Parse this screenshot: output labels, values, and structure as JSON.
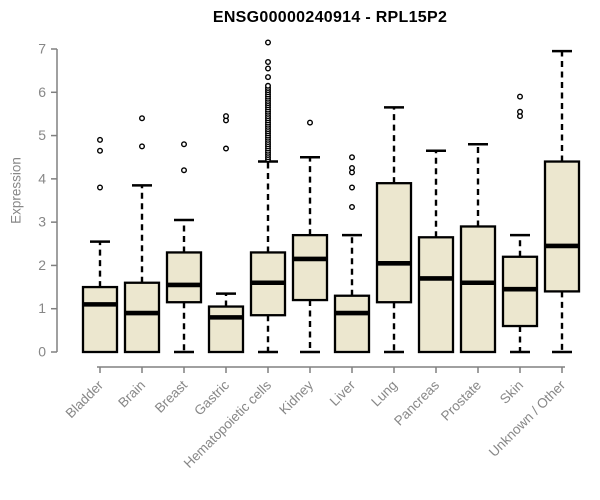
{
  "chart_data": {
    "type": "boxplot",
    "title": "ENSG00000240914 - RPL15P2",
    "ylabel": "Expression",
    "xlabel": "",
    "ylim": [
      0,
      7
    ],
    "yticks": [
      0,
      1,
      2,
      3,
      4,
      5,
      6,
      7
    ],
    "grid": false,
    "legend": "none",
    "categories": [
      "Bladder",
      "Brain",
      "Breast",
      "Gastric",
      "Hematopoietic cells",
      "Kidney",
      "Liver",
      "Lung",
      "Pancreas",
      "Prostate",
      "Skin",
      "Unknown / Other"
    ],
    "series": [
      {
        "label": "Bladder",
        "whisker_low": 0,
        "q1": 0,
        "median": 1.1,
        "q3": 1.5,
        "whisker_high": 2.55,
        "outliers": [
          3.8,
          4.65,
          4.9
        ]
      },
      {
        "label": "Brain",
        "whisker_low": 0,
        "q1": 0,
        "median": 0.9,
        "q3": 1.6,
        "whisker_high": 3.85,
        "outliers": [
          4.75,
          5.4
        ]
      },
      {
        "label": "Breast",
        "whisker_low": 0,
        "q1": 1.15,
        "median": 1.55,
        "q3": 2.3,
        "whisker_high": 3.05,
        "outliers": [
          4.2,
          4.8
        ]
      },
      {
        "label": "Gastric",
        "whisker_low": 0,
        "q1": 0,
        "median": 0.8,
        "q3": 1.05,
        "whisker_high": 1.35,
        "outliers": [
          4.7,
          5.35,
          5.45
        ]
      },
      {
        "label": "Hematopoietic cells",
        "whisker_low": 0,
        "q1": 0.85,
        "median": 1.6,
        "q3": 2.3,
        "whisker_high": 4.4,
        "outliers": [
          4.45,
          4.5,
          4.55,
          4.6,
          4.65,
          4.7,
          4.75,
          4.8,
          4.85,
          4.9,
          4.95,
          5.0,
          5.05,
          5.1,
          5.15,
          5.2,
          5.25,
          5.3,
          5.35,
          5.4,
          5.45,
          5.5,
          5.55,
          5.6,
          5.65,
          5.7,
          5.75,
          5.8,
          5.85,
          5.9,
          5.95,
          6.0,
          6.05,
          6.1,
          6.15,
          6.35,
          6.55,
          6.7,
          7.15
        ]
      },
      {
        "label": "Kidney",
        "whisker_low": 0,
        "q1": 1.2,
        "median": 2.15,
        "q3": 2.7,
        "whisker_high": 4.5,
        "outliers": [
          5.3
        ]
      },
      {
        "label": "Liver",
        "whisker_low": 0,
        "q1": 0,
        "median": 0.9,
        "q3": 1.3,
        "whisker_high": 2.7,
        "outliers": [
          3.35,
          3.8,
          4.15,
          4.25,
          4.5
        ]
      },
      {
        "label": "Lung",
        "whisker_low": 0,
        "q1": 1.15,
        "median": 2.05,
        "q3": 3.9,
        "whisker_high": 5.65,
        "outliers": []
      },
      {
        "label": "Pancreas",
        "whisker_low": 0,
        "q1": 0,
        "median": 1.7,
        "q3": 2.65,
        "whisker_high": 4.65,
        "outliers": []
      },
      {
        "label": "Prostate",
        "whisker_low": 0,
        "q1": 0,
        "median": 1.6,
        "q3": 2.9,
        "whisker_high": 4.8,
        "outliers": []
      },
      {
        "label": "Skin",
        "whisker_low": 0,
        "q1": 0.6,
        "median": 1.45,
        "q3": 2.2,
        "whisker_high": 2.7,
        "outliers": [
          5.45,
          5.55,
          5.9
        ]
      },
      {
        "label": "Unknown / Other",
        "whisker_low": 0,
        "q1": 1.4,
        "median": 2.45,
        "q3": 4.4,
        "whisker_high": 6.95,
        "outliers": []
      }
    ],
    "colors": {
      "box_fill": "#ece7cf",
      "box_border": "#000000",
      "median": "#000000",
      "whisker": "#000000",
      "outlier_stroke": "#000000",
      "outlier_fill": "#ffffff",
      "axis": "#808080",
      "tick_label": "#878787",
      "title": "#000000",
      "background": "#ffffff"
    }
  }
}
